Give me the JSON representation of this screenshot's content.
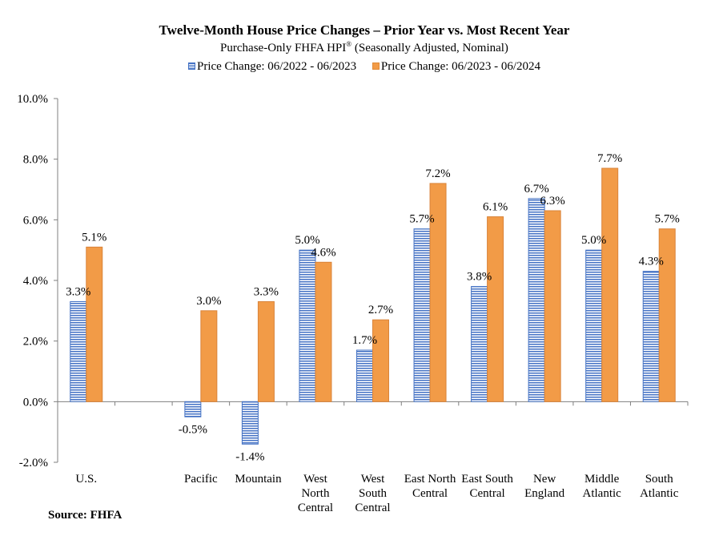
{
  "title": "Twelve-Month House Price Changes – Prior Year vs. Most Recent Year",
  "subtitle_main": "Purchase-Only FHFA HPI",
  "subtitle_mark": "®",
  "subtitle_rest": " (Seasonally Adjusted, Nominal)",
  "source": "Source: FHFA",
  "colors": {
    "series1": "#4472c4",
    "series2": "#f29b47"
  },
  "chart_data": {
    "type": "bar",
    "ylim": [
      -2.0,
      10.0
    ],
    "yticks": [
      "10.0%",
      "8.0%",
      "6.0%",
      "4.0%",
      "2.0%",
      "0.0%",
      "-2.0%"
    ],
    "ytick_values": [
      10,
      8,
      6,
      4,
      2,
      0,
      -2
    ],
    "grid": false,
    "legend": "top",
    "categories": [
      [
        "U.S."
      ],
      [
        ""
      ],
      [
        "Pacific"
      ],
      [
        "Mountain"
      ],
      [
        "West",
        "North",
        "Central"
      ],
      [
        "West",
        "South",
        "Central"
      ],
      [
        "East North",
        "Central"
      ],
      [
        "East South",
        "Central"
      ],
      [
        "New",
        "England"
      ],
      [
        "Middle",
        "Atlantic"
      ],
      [
        "South",
        "Atlantic"
      ]
    ],
    "series": [
      {
        "name": "Price Change:  06/2022 - 06/2023",
        "values": [
          3.3,
          null,
          -0.5,
          -1.4,
          5.0,
          1.7,
          5.7,
          3.8,
          6.7,
          5.0,
          4.3
        ],
        "labels": [
          "3.3%",
          "",
          "-0.5%",
          "-1.4%",
          "5.0%",
          "1.7%",
          "5.7%",
          "3.8%",
          "6.7%",
          "5.0%",
          "4.3%"
        ]
      },
      {
        "name": "Price Change:  06/2023 - 06/2024",
        "values": [
          5.1,
          null,
          3.0,
          3.3,
          4.6,
          2.7,
          7.2,
          6.1,
          6.3,
          7.7,
          5.7
        ],
        "labels": [
          "5.1%",
          "",
          "3.0%",
          "3.3%",
          "4.6%",
          "2.7%",
          "7.2%",
          "6.1%",
          "6.3%",
          "7.7%",
          "5.7%"
        ]
      }
    ]
  }
}
